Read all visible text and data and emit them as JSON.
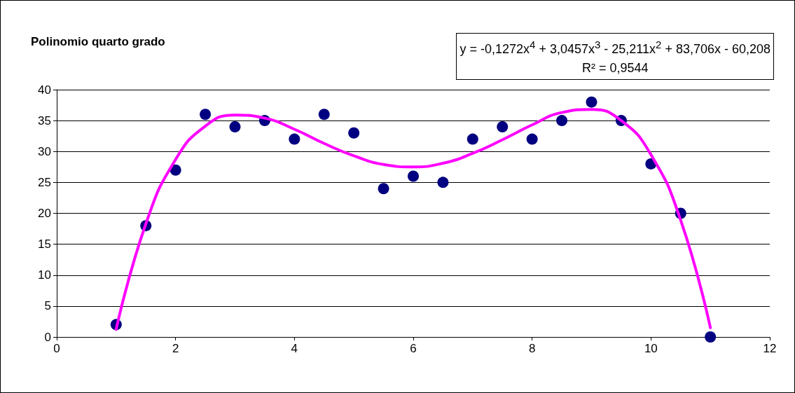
{
  "chart_data": {
    "type": "scatter",
    "title": "Polinomio quarto grado",
    "annotations": [
      "y = -0,1272x$^{4}$ + 3,0457x$^{3}$ - 25,211x$^{2}$ + 83,706x - 60,208\nR² = 0,9544"
    ],
    "series": [
      {
        "color": "#000080",
        "marker": "circle",
        "x": [
          1,
          1.5,
          2,
          2.5,
          3,
          3.5,
          4,
          4.5,
          5,
          5.5,
          6,
          6.5,
          7,
          7.5,
          8,
          8.5,
          9,
          9.5,
          10,
          10.5,
          11
        ],
        "values": [
          2,
          18,
          27,
          36,
          34,
          35,
          32,
          36,
          33,
          24,
          26,
          25,
          32,
          34,
          32,
          35,
          38,
          35,
          28,
          20,
          0
        ]
      },
      {
        "type": "line",
        "color": "#ff00ff",
        "marker": "none",
        "line_style": "solid",
        "x": [
          1,
          1.5,
          2,
          2.5,
          3,
          3.5,
          4,
          4.5,
          5,
          5.5,
          6,
          6.5,
          7,
          7.5,
          8,
          8.5,
          9,
          9.5,
          10,
          10.5,
          11
        ],
        "values": [
          1.2,
          18.3,
          28.7,
          34.1,
          35.9,
          35.4,
          33.6,
          31.3,
          29.3,
          27.9,
          27.5,
          28.1,
          29.7,
          31.9,
          34.3,
          36.3,
          36.8,
          35,
          29.5,
          18.9,
          1.5
        ]
      }
    ],
    "xlim": [
      0,
      12
    ],
    "xticks": [
      0,
      2,
      4,
      6,
      8,
      10,
      12
    ],
    "ylim": [
      0,
      40
    ],
    "yticks": [
      0,
      5,
      10,
      15,
      20,
      25,
      30,
      35,
      40
    ],
    "grid": "y"
  }
}
